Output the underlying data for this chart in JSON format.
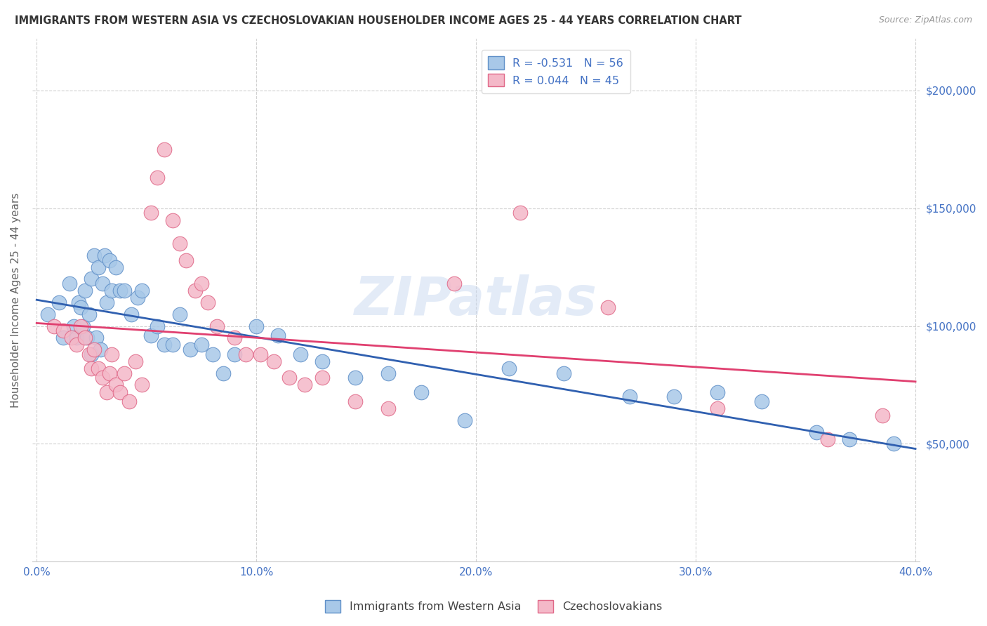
{
  "title": "IMMIGRANTS FROM WESTERN ASIA VS CZECHOSLOVAKIAN HOUSEHOLDER INCOME AGES 25 - 44 YEARS CORRELATION CHART",
  "source": "Source: ZipAtlas.com",
  "ylabel": "Householder Income Ages 25 - 44 years",
  "blue_label": "Immigrants from Western Asia",
  "pink_label": "Czechoslovakians",
  "blue_R": -0.531,
  "blue_N": 56,
  "pink_R": 0.044,
  "pink_N": 45,
  "xlim": [
    -0.002,
    0.402
  ],
  "ylim": [
    0,
    222000
  ],
  "yticks": [
    0,
    50000,
    100000,
    150000,
    200000
  ],
  "ytick_labels": [
    "",
    "$50,000",
    "$100,000",
    "$150,000",
    "$200,000"
  ],
  "xticks": [
    0.0,
    0.1,
    0.2,
    0.3,
    0.4
  ],
  "xtick_labels": [
    "0.0%",
    "10.0%",
    "20.0%",
    "30.0%",
    "40.0%"
  ],
  "blue_color": "#a8c8e8",
  "pink_color": "#f4b8c8",
  "blue_edge_color": "#6090c8",
  "pink_edge_color": "#e06888",
  "blue_line_color": "#3060b0",
  "pink_line_color": "#e04070",
  "axis_color": "#4472c4",
  "title_color": "#333333",
  "grid_color": "#cccccc",
  "background_color": "#ffffff",
  "watermark": "ZIPatlas",
  "blue_x": [
    0.005,
    0.01,
    0.012,
    0.015,
    0.017,
    0.018,
    0.019,
    0.02,
    0.021,
    0.022,
    0.023,
    0.024,
    0.025,
    0.025,
    0.026,
    0.027,
    0.028,
    0.029,
    0.03,
    0.031,
    0.032,
    0.033,
    0.034,
    0.036,
    0.038,
    0.04,
    0.043,
    0.046,
    0.048,
    0.052,
    0.055,
    0.058,
    0.062,
    0.065,
    0.07,
    0.075,
    0.08,
    0.085,
    0.09,
    0.1,
    0.11,
    0.12,
    0.13,
    0.145,
    0.16,
    0.175,
    0.195,
    0.215,
    0.24,
    0.27,
    0.29,
    0.31,
    0.33,
    0.355,
    0.37,
    0.39
  ],
  "blue_y": [
    105000,
    110000,
    95000,
    118000,
    100000,
    95000,
    110000,
    108000,
    100000,
    115000,
    95000,
    105000,
    88000,
    120000,
    130000,
    95000,
    125000,
    90000,
    118000,
    130000,
    110000,
    128000,
    115000,
    125000,
    115000,
    115000,
    105000,
    112000,
    115000,
    96000,
    100000,
    92000,
    92000,
    105000,
    90000,
    92000,
    88000,
    80000,
    88000,
    100000,
    96000,
    88000,
    85000,
    78000,
    80000,
    72000,
    60000,
    82000,
    80000,
    70000,
    70000,
    72000,
    68000,
    55000,
    52000,
    50000
  ],
  "pink_x": [
    0.008,
    0.012,
    0.016,
    0.018,
    0.02,
    0.022,
    0.024,
    0.025,
    0.026,
    0.028,
    0.03,
    0.032,
    0.033,
    0.034,
    0.036,
    0.038,
    0.04,
    0.042,
    0.045,
    0.048,
    0.052,
    0.055,
    0.058,
    0.062,
    0.065,
    0.068,
    0.072,
    0.075,
    0.078,
    0.082,
    0.09,
    0.095,
    0.102,
    0.108,
    0.115,
    0.122,
    0.13,
    0.145,
    0.16,
    0.19,
    0.22,
    0.26,
    0.31,
    0.36,
    0.385
  ],
  "pink_y": [
    100000,
    98000,
    95000,
    92000,
    100000,
    95000,
    88000,
    82000,
    90000,
    82000,
    78000,
    72000,
    80000,
    88000,
    75000,
    72000,
    80000,
    68000,
    85000,
    75000,
    148000,
    163000,
    175000,
    145000,
    135000,
    128000,
    115000,
    118000,
    110000,
    100000,
    95000,
    88000,
    88000,
    85000,
    78000,
    75000,
    78000,
    68000,
    65000,
    118000,
    148000,
    108000,
    65000,
    52000,
    62000
  ]
}
